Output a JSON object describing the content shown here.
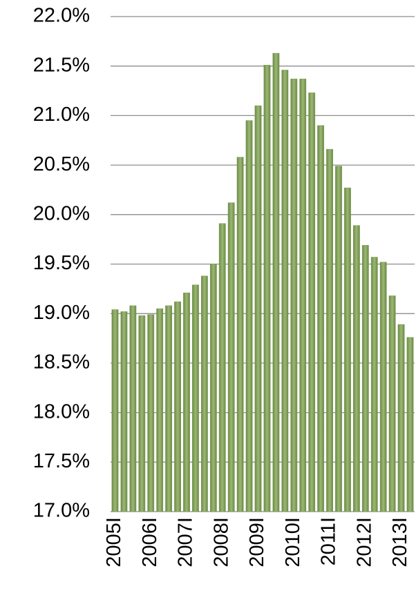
{
  "chart_data": {
    "type": "bar",
    "categories": [
      "2005I",
      null,
      null,
      null,
      "2006I",
      null,
      null,
      null,
      "2007I",
      null,
      null,
      null,
      "2008I",
      null,
      null,
      null,
      "2009I",
      null,
      null,
      null,
      "2010I",
      null,
      null,
      null,
      "2011I",
      null,
      null,
      null,
      "2012I",
      null,
      null,
      null,
      "2013I",
      null
    ],
    "values": [
      19.04,
      19.02,
      19.08,
      18.98,
      18.99,
      19.05,
      19.08,
      19.12,
      19.21,
      19.29,
      19.38,
      19.5,
      19.91,
      20.12,
      20.58,
      20.95,
      21.1,
      21.51,
      21.63,
      21.46,
      21.37,
      21.37,
      21.23,
      20.9,
      20.66,
      20.49,
      20.27,
      19.89,
      19.69,
      19.57,
      19.52,
      19.18,
      18.89,
      18.76
    ],
    "color": "#7d9a55",
    "ylim": [
      17,
      22
    ],
    "yticks": [
      {
        "value": 17,
        "label": "17.0%"
      },
      {
        "value": 17.5,
        "label": "17.5%"
      },
      {
        "value": 18,
        "label": "18.0%"
      },
      {
        "value": 18.5,
        "label": "18.5%"
      },
      {
        "value": 19,
        "label": "19.0%"
      },
      {
        "value": 19.5,
        "label": "19.5%"
      },
      {
        "value": 20,
        "label": "20.0%"
      },
      {
        "value": 20.5,
        "label": "20.5%"
      },
      {
        "value": 21,
        "label": "21.0%"
      },
      {
        "value": 21.5,
        "label": "21.5%"
      },
      {
        "value": 22,
        "label": "22.0%"
      }
    ],
    "grid": true
  }
}
